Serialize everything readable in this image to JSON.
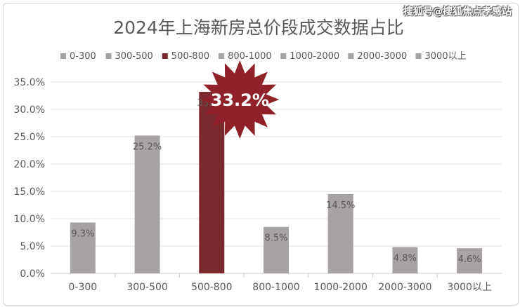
{
  "watermark": "搜狐号@搜狐焦点孝感站",
  "colors": {
    "bar": "#a8a3a3",
    "highlight": "#7a2a2f",
    "burst": "#8e2228",
    "text": "#595959",
    "grid": "#e3e3e3"
  },
  "chart_data": {
    "type": "bar",
    "title": "2024年上海新房总价段成交数据占比",
    "categories": [
      "0-300",
      "300-500",
      "500-800",
      "800-1000",
      "1000-2000",
      "2000-3000",
      "3000以上"
    ],
    "values": [
      9.3,
      25.2,
      33.2,
      8.5,
      14.5,
      4.8,
      4.6
    ],
    "data_labels": [
      "9.3%",
      "25.2%",
      "33.2%",
      "8.5%",
      "14.5%",
      "4.8%",
      "4.6%"
    ],
    "legend": [
      "0-300",
      "300-500",
      "500-800",
      "800-1000",
      "1000-2000",
      "2000-3000",
      "3000以上"
    ],
    "legend_position": "top",
    "highlight_index": 2,
    "highlight_label": "33.2%",
    "yticks": [
      "0.0%",
      "5.0%",
      "10.0%",
      "15.0%",
      "20.0%",
      "25.0%",
      "30.0%",
      "35.0%"
    ],
    "ylim": [
      0,
      35
    ],
    "grid": true
  }
}
